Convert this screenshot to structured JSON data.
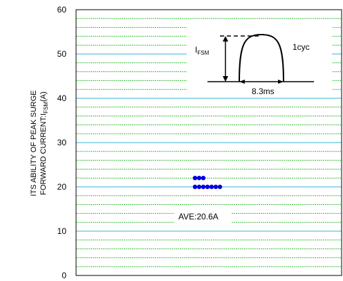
{
  "chart_data": {
    "type": "scatter",
    "title": "",
    "ylabel_line1": "ITS ABILITY OF PEAK SURGE",
    "ylabel_line2_prefix": "FORWARD CURRENT:I",
    "ylabel_line2_sub": "FSM",
    "ylabel_line2_suffix": "(A)",
    "ylim": [
      0,
      60
    ],
    "yticks": [
      0,
      10,
      20,
      30,
      40,
      50,
      60
    ],
    "minor_grid_step": 2,
    "grid": true,
    "colors": {
      "major_grid": "#36b3d9",
      "minor_grid": "#3cbf3c",
      "points": "#0000e6"
    },
    "points_rows": [
      {
        "y": 22,
        "count": 3
      },
      {
        "y": 20,
        "count": 7
      }
    ],
    "average_label": "AVE:20.6A",
    "inset": {
      "current_label": "I",
      "current_sub": "FSM",
      "cycle_label": "1cyc",
      "period_label": "8.3ms"
    }
  }
}
